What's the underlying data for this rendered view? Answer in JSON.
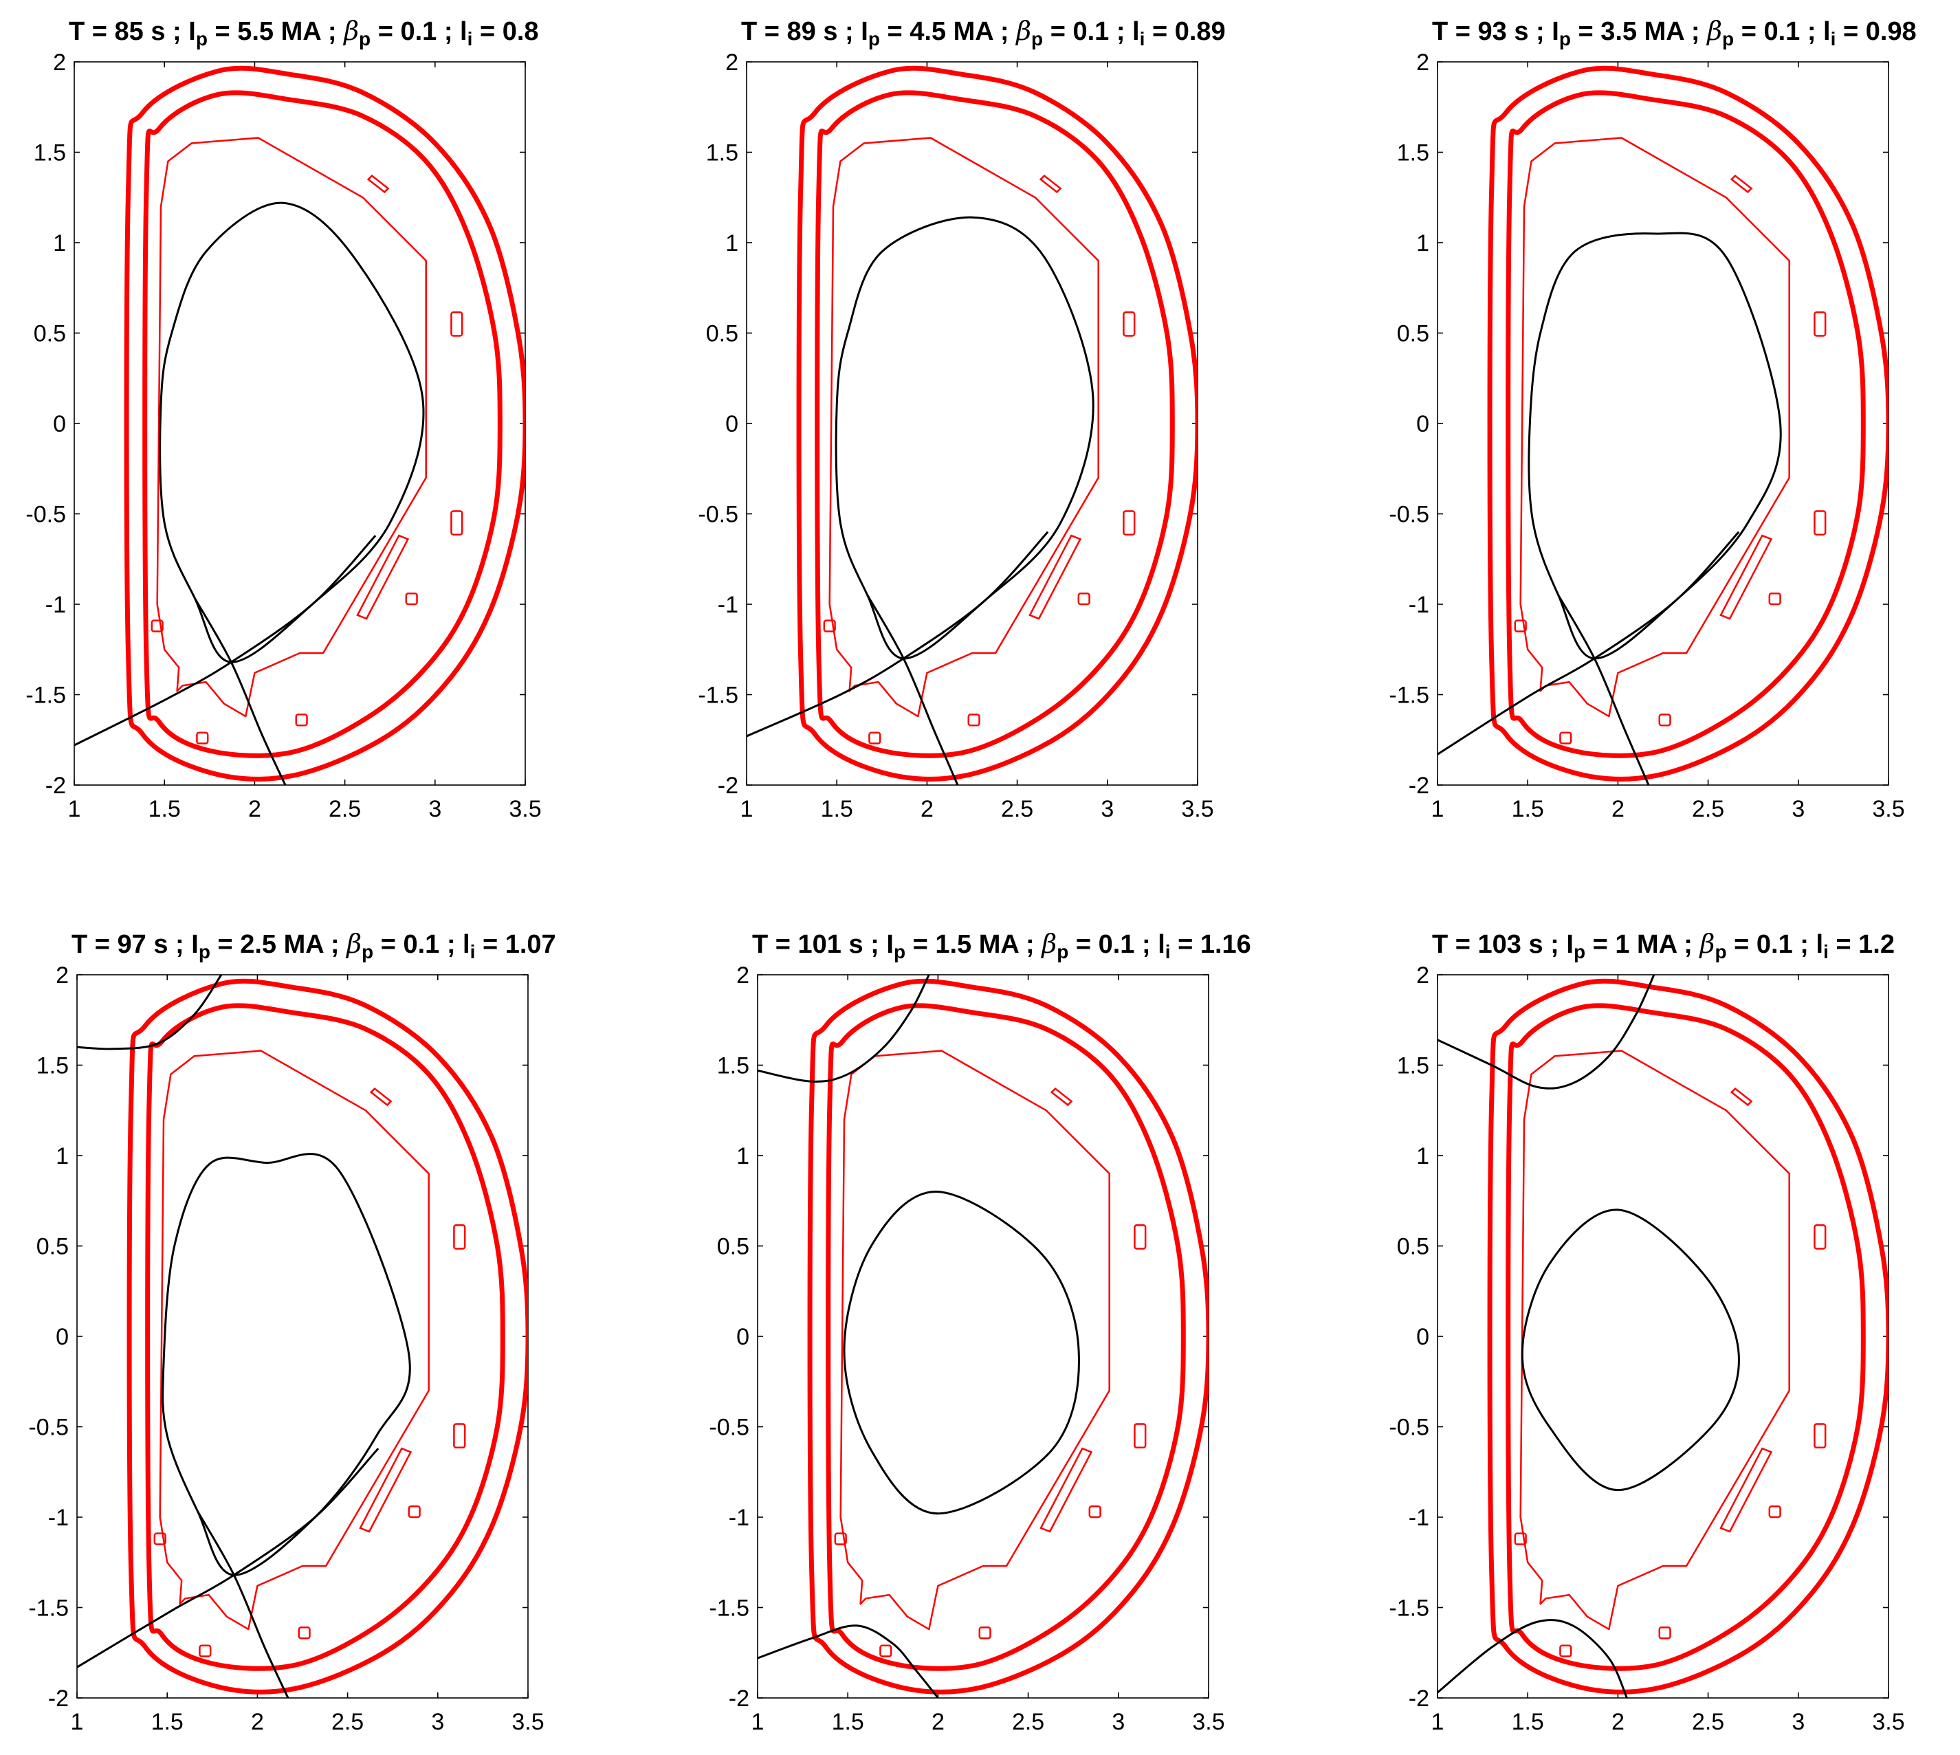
{
  "colors": {
    "structure": "#ff0000",
    "plasma": "#000000",
    "axes": "#000000"
  },
  "chart_data": [
    {
      "type": "line",
      "title": {
        "prefix": "T = 85 s ; I",
        "sub_p1": "p",
        "mid1": " = 5.5 MA ; ",
        "beta": "β",
        "sub_p2": "p",
        "mid2": " = 0.1 ; l",
        "sub_i": "i",
        "suffix": " = 0.8"
      },
      "time_s": 85,
      "ip_MA": 5.5,
      "beta_p": 0.1,
      "li": 0.8,
      "xlim": [
        1,
        3.5
      ],
      "ylim": [
        -2,
        2
      ],
      "xticks": [
        "1",
        "1.5",
        "2",
        "2.5",
        "3",
        "3.5"
      ],
      "yticks": [
        "-2",
        "-1.5",
        "-1",
        "-0.5",
        "0",
        "0.5",
        "1",
        "1.5",
        "2"
      ],
      "plasma": {
        "kind": "diverted",
        "r_in": 1.48,
        "r_out": 2.93,
        "z_top": 1.22,
        "r_top": 2.15,
        "z_mid": 0.15,
        "x_point": [
          1.87,
          -1.32
        ],
        "legs": [
          [
            1.0,
            -1.78
          ],
          [
            2.17,
            -2.0
          ]
        ]
      }
    },
    {
      "type": "line",
      "title": {
        "prefix": "T = 89 s ; I",
        "sub_p1": "p",
        "mid1": " = 4.5 MA ; ",
        "beta": "β",
        "sub_p2": "p",
        "mid2": " = 0.1 ; l",
        "sub_i": "i",
        "suffix": " = 0.89"
      },
      "time_s": 89,
      "ip_MA": 4.5,
      "beta_p": 0.1,
      "li": 0.89,
      "xlim": [
        1,
        3.5
      ],
      "ylim": [
        -2,
        2
      ],
      "xticks": [
        "1",
        "1.5",
        "2",
        "2.5",
        "3",
        "3.5"
      ],
      "yticks": [
        "-2",
        "-1.5",
        "-1",
        "-0.5",
        "0",
        "0.5",
        "1",
        "1.5",
        "2"
      ],
      "plasma": {
        "kind": "diverted",
        "r_in": 1.5,
        "r_out": 2.92,
        "z_top": 1.14,
        "r_top": 2.25,
        "z_mid": 0.15,
        "x_point": [
          1.87,
          -1.3
        ],
        "legs": [
          [
            1.0,
            -1.73
          ],
          [
            2.17,
            -2.0
          ]
        ]
      }
    },
    {
      "type": "line",
      "title": {
        "prefix": "T = 93 s ; I",
        "sub_p1": "p",
        "mid1": " = 3.5 MA ; ",
        "beta": "β",
        "sub_p2": "p",
        "mid2": " = 0.1 ; l",
        "sub_i": "i",
        "suffix": " = 0.98"
      },
      "time_s": 93,
      "ip_MA": 3.5,
      "beta_p": 0.1,
      "li": 0.98,
      "xlim": [
        1,
        3.5
      ],
      "ylim": [
        -2,
        2
      ],
      "xticks": [
        "1",
        "1.5",
        "2",
        "2.5",
        "3",
        "3.5"
      ],
      "yticks": [
        "-2",
        "-1.5",
        "-1",
        "-0.5",
        "0",
        "0.5",
        "1",
        "1.5",
        "2"
      ],
      "plasma": {
        "kind": "diverted",
        "r_in": 1.51,
        "r_out": 2.9,
        "z_top": 1.05,
        "r_top": 2.2,
        "z_mid": 0.0,
        "x_point": [
          1.87,
          -1.3
        ],
        "legs": [
          [
            1.0,
            -1.83
          ],
          [
            2.17,
            -2.0
          ]
        ]
      }
    },
    {
      "type": "line",
      "title": {
        "prefix": "T = 97 s ; I",
        "sub_p1": "p",
        "mid1": " = 2.5 MA ; ",
        "beta": "β",
        "sub_p2": "p",
        "mid2": " = 0.1 ; l",
        "sub_i": "i",
        "suffix": " = 1.07"
      },
      "time_s": 97,
      "ip_MA": 2.5,
      "beta_p": 0.1,
      "li": 1.07,
      "xlim": [
        1,
        3.5
      ],
      "ylim": [
        -2,
        2
      ],
      "xticks": [
        "1",
        "1.5",
        "2",
        "2.5",
        "3",
        "3.5"
      ],
      "yticks": [
        "-2",
        "-1.5",
        "-1",
        "-0.5",
        "0",
        "0.5",
        "1",
        "1.5",
        "2"
      ],
      "plasma": {
        "kind": "diverted",
        "r_in": 1.48,
        "r_out": 2.84,
        "z_top": 0.96,
        "r_top": 2.05,
        "z_mid": -0.1,
        "x_point": [
          1.87,
          -1.32
        ],
        "legs": [
          [
            1.0,
            -1.83
          ],
          [
            2.17,
            -2.0
          ]
        ]
      },
      "upper_flux": {
        "points": [
          [
            1.0,
            1.6
          ],
          [
            1.2,
            1.59
          ],
          [
            1.45,
            1.62
          ],
          [
            1.65,
            1.78
          ],
          [
            1.8,
            2.0
          ]
        ]
      }
    },
    {
      "type": "line",
      "title": {
        "prefix": "T = 101 s ; I",
        "sub_p1": "p",
        "mid1": " = 1.5 MA ; ",
        "beta": "β",
        "sub_p2": "p",
        "mid2": " = 0.1 ; l",
        "sub_i": "i",
        "suffix": " = 1.16"
      },
      "time_s": 101,
      "ip_MA": 1.5,
      "beta_p": 0.1,
      "li": 1.16,
      "xlim": [
        1,
        3.5
      ],
      "ylim": [
        -2,
        2
      ],
      "xticks": [
        "1",
        "1.5",
        "2",
        "2.5",
        "3",
        "3.5"
      ],
      "yticks": [
        "-2",
        "-1.5",
        "-1",
        "-0.5",
        "0",
        "0.5",
        "1",
        "1.5",
        "2"
      ],
      "plasma": {
        "kind": "limited",
        "r_in": 1.48,
        "r_out": 2.78,
        "z_top": 0.8,
        "r_top": 2.0,
        "z_bot": -0.98,
        "r_bot": 2.0,
        "z_mid": -0.08
      },
      "upper_flux": {
        "points": [
          [
            1.0,
            1.47
          ],
          [
            1.3,
            1.41
          ],
          [
            1.5,
            1.45
          ],
          [
            1.7,
            1.6
          ],
          [
            1.85,
            1.8
          ],
          [
            1.95,
            2.0
          ]
        ]
      },
      "lower_flux": {
        "points": [
          [
            1.0,
            -1.78
          ],
          [
            1.3,
            -1.67
          ],
          [
            1.55,
            -1.6
          ],
          [
            1.75,
            -1.7
          ],
          [
            1.88,
            -1.85
          ],
          [
            2.0,
            -2.0
          ]
        ]
      }
    },
    {
      "type": "line",
      "title": {
        "prefix": "T = 103 s ; I",
        "sub_p1": "p",
        "mid1": " = 1 MA ; ",
        "beta": "β",
        "sub_p2": "p",
        "mid2": " = 0.1 ; l",
        "sub_i": "i",
        "suffix": " = 1.2"
      },
      "time_s": 103,
      "ip_MA": 1,
      "beta_p": 0.1,
      "li": 1.2,
      "xlim": [
        1,
        3.5
      ],
      "ylim": [
        -2,
        2
      ],
      "xticks": [
        "1",
        "1.5",
        "2",
        "2.5",
        "3",
        "3.5"
      ],
      "yticks": [
        "-2",
        "-1.5",
        "-1",
        "-0.5",
        "0",
        "0.5",
        "1",
        "1.5",
        "2"
      ],
      "plasma": {
        "kind": "limited",
        "r_in": 1.47,
        "r_out": 2.67,
        "z_top": 0.7,
        "r_top": 2.0,
        "z_bot": -0.85,
        "r_bot": 2.0,
        "z_mid": -0.1
      },
      "upper_flux": {
        "points": [
          [
            1.0,
            1.64
          ],
          [
            1.3,
            1.5
          ],
          [
            1.55,
            1.38
          ],
          [
            1.75,
            1.4
          ],
          [
            1.95,
            1.55
          ],
          [
            2.1,
            1.78
          ],
          [
            2.2,
            2.0
          ]
        ]
      },
      "lower_flux": {
        "points": [
          [
            1.0,
            -1.97
          ],
          [
            1.3,
            -1.72
          ],
          [
            1.55,
            -1.58
          ],
          [
            1.75,
            -1.6
          ],
          [
            1.95,
            -1.78
          ],
          [
            2.05,
            -2.0
          ]
        ]
      }
    }
  ],
  "machine_geometry": {
    "units": "m",
    "outer_wall": [
      [
        1.3,
        1.3
      ],
      [
        1.38,
        1.72
      ],
      [
        1.8,
        1.95
      ],
      [
        2.2,
        1.93
      ],
      [
        2.6,
        1.83
      ],
      [
        3.0,
        1.55
      ],
      [
        3.3,
        1.1
      ],
      [
        3.46,
        0.5
      ],
      [
        3.5,
        0.0
      ],
      [
        3.46,
        -0.5
      ],
      [
        3.3,
        -1.05
      ],
      [
        3.05,
        -1.45
      ],
      [
        2.7,
        -1.75
      ],
      [
        2.2,
        -1.95
      ],
      [
        1.75,
        -1.93
      ],
      [
        1.38,
        -1.72
      ],
      [
        1.3,
        -1.3
      ]
    ],
    "inner_wall": [
      [
        1.4,
        1.3
      ],
      [
        1.47,
        1.63
      ],
      [
        1.8,
        1.82
      ],
      [
        2.2,
        1.79
      ],
      [
        2.6,
        1.7
      ],
      [
        2.95,
        1.45
      ],
      [
        3.18,
        1.05
      ],
      [
        3.33,
        0.5
      ],
      [
        3.36,
        0.0
      ],
      [
        3.33,
        -0.5
      ],
      [
        3.18,
        -1.0
      ],
      [
        2.95,
        -1.35
      ],
      [
        2.62,
        -1.63
      ],
      [
        2.2,
        -1.82
      ],
      [
        1.75,
        -1.81
      ],
      [
        1.47,
        -1.65
      ],
      [
        1.4,
        -1.3
      ]
    ],
    "first_wall": [
      [
        1.48,
        1.2
      ],
      [
        1.52,
        1.45
      ],
      [
        1.65,
        1.55
      ],
      [
        2.02,
        1.58
      ],
      [
        2.6,
        1.25
      ],
      [
        2.95,
        0.9
      ],
      [
        2.95,
        -0.3
      ],
      [
        2.38,
        -1.27
      ],
      [
        2.25,
        -1.27
      ],
      [
        2.0,
        -1.38
      ],
      [
        1.95,
        -1.62
      ],
      [
        1.83,
        -1.55
      ],
      [
        1.73,
        -1.43
      ],
      [
        1.6,
        -1.45
      ],
      [
        1.57,
        -1.48
      ],
      [
        1.58,
        -1.35
      ],
      [
        1.5,
        -1.25
      ],
      [
        1.46,
        -1.0
      ]
    ],
    "baffle_rect": [
      [
        2.57,
        -1.06
      ],
      [
        2.8,
        -0.62
      ],
      [
        2.85,
        -0.64
      ],
      [
        2.62,
        -1.08
      ]
    ],
    "coils": [
      {
        "r": 3.12,
        "z": 0.55,
        "w": 0.06,
        "h": 0.13
      },
      {
        "r": 3.12,
        "z": -0.55,
        "w": 0.06,
        "h": 0.13
      },
      {
        "r": 1.46,
        "z": -1.12,
        "w": 0.06,
        "h": 0.06
      },
      {
        "r": 1.71,
        "z": -1.74,
        "w": 0.06,
        "h": 0.06
      },
      {
        "r": 2.26,
        "z": -1.64,
        "w": 0.06,
        "h": 0.06
      },
      {
        "r": 2.87,
        "z": -0.97,
        "w": 0.06,
        "h": 0.06
      }
    ],
    "small_tile": [
      [
        2.63,
        1.35
      ],
      [
        2.72,
        1.28
      ],
      [
        2.74,
        1.3
      ],
      [
        2.65,
        1.37
      ]
    ]
  }
}
